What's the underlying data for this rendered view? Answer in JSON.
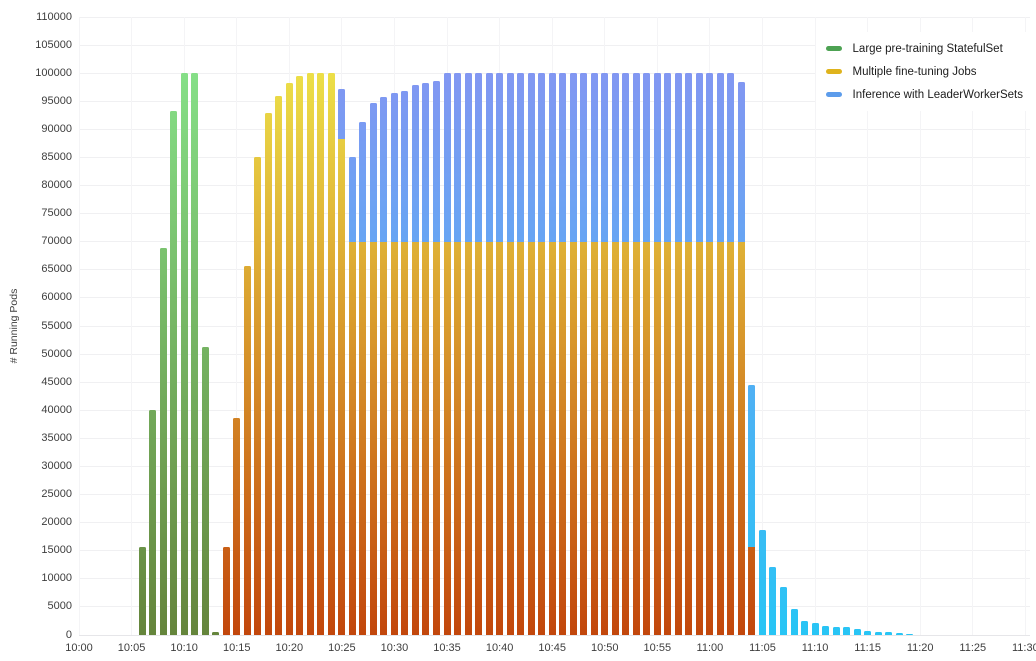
{
  "chart_data": {
    "type": "bar",
    "stacked": true,
    "title": "",
    "xlabel": "",
    "ylabel": "# Running Pods",
    "ylim": [
      0,
      110000
    ],
    "grid": true,
    "legend_position": "top-right",
    "yticks": [
      0,
      5000,
      10000,
      15000,
      20000,
      25000,
      30000,
      35000,
      40000,
      45000,
      50000,
      55000,
      60000,
      65000,
      70000,
      75000,
      80000,
      85000,
      90000,
      95000,
      100000,
      105000,
      110000
    ],
    "xticks": [
      "10:00",
      "10:05",
      "10:10",
      "10:15",
      "10:20",
      "10:25",
      "10:30",
      "10:35",
      "10:40",
      "10:45",
      "10:50",
      "10:55",
      "11:00",
      "11:05",
      "11:10",
      "11:15",
      "11:20",
      "11:25",
      "11:30"
    ],
    "legend": [
      {
        "series": "pre",
        "label": "Large pre-training StatefulSet",
        "swatch": "#4da253",
        "color_at_zero": "#65853c",
        "color_at_max": "#88e88e"
      },
      {
        "series": "ft",
        "label": "Multiple fine-tuning Jobs",
        "swatch": "#dfb31c",
        "color_at_zero": "#c2470c",
        "color_at_max": "#f0ee4e"
      },
      {
        "series": "inf",
        "label": "Inference with LeaderWorkerSets",
        "swatch": "#5c9ceb",
        "color_at_zero": "#28c5f5",
        "color_at_max": "#8b92f2"
      }
    ],
    "bars": [
      {
        "t": "10:06",
        "pre": 15600,
        "ft": 0,
        "inf": 0
      },
      {
        "t": "10:07",
        "pre": 40000,
        "ft": 0,
        "inf": 0
      },
      {
        "t": "10:08",
        "pre": 68800,
        "ft": 0,
        "inf": 0
      },
      {
        "t": "10:09",
        "pre": 93300,
        "ft": 0,
        "inf": 0
      },
      {
        "t": "10:10",
        "pre": 100000,
        "ft": 0,
        "inf": 0
      },
      {
        "t": "10:11",
        "pre": 100000,
        "ft": 0,
        "inf": 0
      },
      {
        "t": "10:12",
        "pre": 51200,
        "ft": 0,
        "inf": 0
      },
      {
        "t": "10:13",
        "pre": 500,
        "ft": 0,
        "inf": 0
      },
      {
        "t": "10:14",
        "pre": 0,
        "ft": 15600,
        "inf": 0
      },
      {
        "t": "10:15",
        "pre": 0,
        "ft": 38700,
        "inf": 0
      },
      {
        "t": "10:16",
        "pre": 0,
        "ft": 65700,
        "inf": 0
      },
      {
        "t": "10:17",
        "pre": 0,
        "ft": 85000,
        "inf": 0
      },
      {
        "t": "10:18",
        "pre": 0,
        "ft": 93000,
        "inf": 0
      },
      {
        "t": "10:19",
        "pre": 0,
        "ft": 96000,
        "inf": 0
      },
      {
        "t": "10:20",
        "pre": 0,
        "ft": 98200,
        "inf": 0
      },
      {
        "t": "10:21",
        "pre": 0,
        "ft": 99500,
        "inf": 0
      },
      {
        "t": "10:22",
        "pre": 0,
        "ft": 100000,
        "inf": 0
      },
      {
        "t": "10:23",
        "pre": 0,
        "ft": 100000,
        "inf": 0
      },
      {
        "t": "10:24",
        "pre": 0,
        "ft": 100000,
        "inf": 0
      },
      {
        "t": "10:25",
        "pre": 0,
        "ft": 88200,
        "inf": 8900
      },
      {
        "t": "10:26",
        "pre": 0,
        "ft": 70000,
        "inf": 15000
      },
      {
        "t": "10:27",
        "pre": 0,
        "ft": 70000,
        "inf": 21300
      },
      {
        "t": "10:28",
        "pre": 0,
        "ft": 70000,
        "inf": 24700
      },
      {
        "t": "10:29",
        "pre": 0,
        "ft": 70000,
        "inf": 25700
      },
      {
        "t": "10:30",
        "pre": 0,
        "ft": 70000,
        "inf": 26400
      },
      {
        "t": "10:31",
        "pre": 0,
        "ft": 70000,
        "inf": 26900
      },
      {
        "t": "10:32",
        "pre": 0,
        "ft": 70000,
        "inf": 27900
      },
      {
        "t": "10:33",
        "pre": 0,
        "ft": 70000,
        "inf": 28300
      },
      {
        "t": "10:34",
        "pre": 0,
        "ft": 70000,
        "inf": 28600
      },
      {
        "t": "10:35",
        "pre": 0,
        "ft": 70000,
        "inf": 30000
      },
      {
        "t": "10:36",
        "pre": 0,
        "ft": 70000,
        "inf": 30000
      },
      {
        "t": "10:37",
        "pre": 0,
        "ft": 70000,
        "inf": 30000
      },
      {
        "t": "10:38",
        "pre": 0,
        "ft": 70000,
        "inf": 30000
      },
      {
        "t": "10:39",
        "pre": 0,
        "ft": 70000,
        "inf": 30000
      },
      {
        "t": "10:40",
        "pre": 0,
        "ft": 70000,
        "inf": 30000
      },
      {
        "t": "10:41",
        "pre": 0,
        "ft": 70000,
        "inf": 30000
      },
      {
        "t": "10:42",
        "pre": 0,
        "ft": 70000,
        "inf": 30000
      },
      {
        "t": "10:43",
        "pre": 0,
        "ft": 70000,
        "inf": 30000
      },
      {
        "t": "10:44",
        "pre": 0,
        "ft": 70000,
        "inf": 30000
      },
      {
        "t": "10:45",
        "pre": 0,
        "ft": 70000,
        "inf": 30000
      },
      {
        "t": "10:46",
        "pre": 0,
        "ft": 70000,
        "inf": 30000
      },
      {
        "t": "10:47",
        "pre": 0,
        "ft": 70000,
        "inf": 30000
      },
      {
        "t": "10:48",
        "pre": 0,
        "ft": 70000,
        "inf": 30000
      },
      {
        "t": "10:49",
        "pre": 0,
        "ft": 70000,
        "inf": 30000
      },
      {
        "t": "10:50",
        "pre": 0,
        "ft": 70000,
        "inf": 30000
      },
      {
        "t": "10:51",
        "pre": 0,
        "ft": 70000,
        "inf": 30000
      },
      {
        "t": "10:52",
        "pre": 0,
        "ft": 70000,
        "inf": 30000
      },
      {
        "t": "10:53",
        "pre": 0,
        "ft": 70000,
        "inf": 30000
      },
      {
        "t": "10:54",
        "pre": 0,
        "ft": 70000,
        "inf": 30000
      },
      {
        "t": "10:55",
        "pre": 0,
        "ft": 70000,
        "inf": 30000
      },
      {
        "t": "10:56",
        "pre": 0,
        "ft": 70000,
        "inf": 30000
      },
      {
        "t": "10:57",
        "pre": 0,
        "ft": 70000,
        "inf": 30000
      },
      {
        "t": "10:58",
        "pre": 0,
        "ft": 70000,
        "inf": 30000
      },
      {
        "t": "10:59",
        "pre": 0,
        "ft": 70000,
        "inf": 30000
      },
      {
        "t": "11:00",
        "pre": 0,
        "ft": 70000,
        "inf": 30000
      },
      {
        "t": "11:01",
        "pre": 0,
        "ft": 70000,
        "inf": 30000
      },
      {
        "t": "11:02",
        "pre": 0,
        "ft": 70000,
        "inf": 30000
      },
      {
        "t": "11:03",
        "pre": 0,
        "ft": 70000,
        "inf": 28500
      },
      {
        "t": "11:04",
        "pre": 0,
        "ft": 15700,
        "inf": 28800
      },
      {
        "t": "11:05",
        "pre": 0,
        "ft": 0,
        "inf": 18700
      },
      {
        "t": "11:06",
        "pre": 0,
        "ft": 0,
        "inf": 12100
      },
      {
        "t": "11:07",
        "pre": 0,
        "ft": 0,
        "inf": 8500
      },
      {
        "t": "11:08",
        "pre": 0,
        "ft": 0,
        "inf": 4600
      },
      {
        "t": "11:09",
        "pre": 0,
        "ft": 0,
        "inf": 2500
      },
      {
        "t": "11:10",
        "pre": 0,
        "ft": 0,
        "inf": 2100
      },
      {
        "t": "11:11",
        "pre": 0,
        "ft": 0,
        "inf": 1600
      },
      {
        "t": "11:12",
        "pre": 0,
        "ft": 0,
        "inf": 1500
      },
      {
        "t": "11:13",
        "pre": 0,
        "ft": 0,
        "inf": 1400
      },
      {
        "t": "11:14",
        "pre": 0,
        "ft": 0,
        "inf": 1100
      },
      {
        "t": "11:15",
        "pre": 0,
        "ft": 0,
        "inf": 800
      },
      {
        "t": "11:16",
        "pre": 0,
        "ft": 0,
        "inf": 600
      },
      {
        "t": "11:17",
        "pre": 0,
        "ft": 0,
        "inf": 500
      },
      {
        "t": "11:18",
        "pre": 0,
        "ft": 0,
        "inf": 300
      },
      {
        "t": "11:19",
        "pre": 0,
        "ft": 0,
        "inf": 200
      }
    ]
  }
}
